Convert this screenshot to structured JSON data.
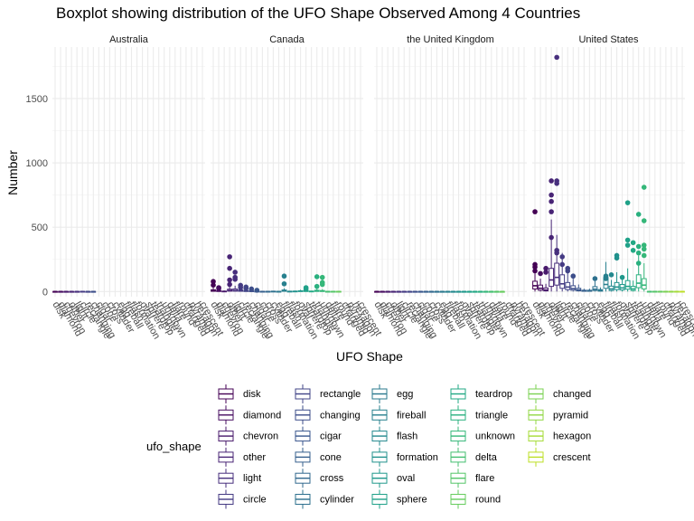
{
  "chart_data": {
    "type": "boxplot",
    "title": "Boxplot showing distribution of the UFO Shape Observed Among 4 Countries",
    "xlabel": "UFO Shape",
    "ylabel": "Number",
    "ylim": [
      -40,
      1900
    ],
    "yticks": [
      0,
      500,
      1000,
      1500
    ],
    "grid": true,
    "legend_title": "ufo_shape",
    "legend_position": "bottom",
    "facets": [
      "Australia",
      "Canada",
      "the United Kingdom",
      "United States"
    ],
    "categories": [
      "disk",
      "diamond",
      "chevron",
      "other",
      "light",
      "circle",
      "rectangle",
      "changing",
      "cigar",
      "cone",
      "cross",
      "cylinder",
      "egg",
      "fireball",
      "flash",
      "formation",
      "oval",
      "sphere",
      "teardrop",
      "triangle",
      "unknown",
      "delta",
      "flare",
      "round",
      "changed",
      "pyramid",
      "hexagon",
      "crescent"
    ],
    "colors": [
      "#440154",
      "#470d60",
      "#48196b",
      "#482475",
      "#472f7d",
      "#443a83",
      "#414487",
      "#3d4e8a",
      "#39568c",
      "#355f8d",
      "#31688e",
      "#2d708e",
      "#2a788e",
      "#27808e",
      "#23888e",
      "#21918c",
      "#1f988b",
      "#1fa188",
      "#22a884",
      "#2ab07f",
      "#35b779",
      "#44bf70",
      "#54c568",
      "#66cc5d",
      "#7ad151",
      "#90d743",
      "#a5db36",
      "#bddf26"
    ],
    "series": [
      {
        "name": "Australia",
        "shapes": [
          "disk",
          "diamond",
          "chevron",
          "other",
          "light",
          "circle",
          "rectangle",
          "changing"
        ],
        "boxes": [
          [
            0,
            0,
            0,
            0,
            1
          ],
          [
            0,
            0,
            0,
            0,
            1
          ],
          [
            0,
            0,
            0,
            0,
            1
          ],
          [
            0,
            0,
            0,
            0,
            1
          ],
          [
            0,
            0,
            0,
            0,
            1
          ],
          [
            0,
            0,
            0,
            1,
            2
          ],
          [
            0,
            0,
            0,
            0,
            1
          ],
          [
            0,
            0,
            0,
            0,
            1
          ]
        ],
        "outliers": [
          [],
          [],
          [],
          [],
          [],
          [],
          [],
          []
        ]
      },
      {
        "name": "Canada",
        "shapes": [
          "disk",
          "diamond",
          "chevron",
          "other",
          "light",
          "circle",
          "rectangle",
          "changing",
          "cigar",
          "cone",
          "cross",
          "cylinder",
          "egg",
          "fireball",
          "flash",
          "formation",
          "oval",
          "sphere",
          "teardrop",
          "triangle",
          "unknown",
          "delta",
          "flare",
          "round"
        ],
        "boxes": [
          [
            0,
            2,
            6,
            14,
            30
          ],
          [
            0,
            1,
            3,
            8,
            18
          ],
          [
            0,
            0,
            1,
            3,
            8
          ],
          [
            0,
            3,
            8,
            18,
            40
          ],
          [
            0,
            3,
            8,
            20,
            45
          ],
          [
            0,
            2,
            5,
            12,
            26
          ],
          [
            0,
            1,
            3,
            7,
            15
          ],
          [
            0,
            1,
            2,
            5,
            10
          ],
          [
            0,
            0,
            1,
            2,
            5
          ],
          [
            0,
            0,
            0,
            1,
            2
          ],
          [
            0,
            0,
            0,
            1,
            2
          ],
          [
            0,
            0,
            1,
            2,
            5
          ],
          [
            0,
            0,
            0,
            1,
            2
          ],
          [
            0,
            2,
            5,
            12,
            25
          ],
          [
            0,
            0,
            1,
            2,
            5
          ],
          [
            0,
            0,
            1,
            3,
            7
          ],
          [
            0,
            1,
            3,
            6,
            14
          ],
          [
            0,
            1,
            3,
            8,
            18
          ],
          [
            0,
            0,
            1,
            3,
            6
          ],
          [
            0,
            1,
            4,
            10,
            22
          ],
          [
            0,
            1,
            3,
            8,
            18
          ],
          [
            0,
            0,
            0,
            1,
            2
          ],
          [
            0,
            0,
            0,
            1,
            2
          ],
          [
            0,
            0,
            0,
            1,
            2
          ]
        ],
        "outliers": [
          [
            50,
            78
          ],
          [
            25,
            30
          ],
          [],
          [
            90,
            270,
            180,
            55
          ],
          [
            110,
            150,
            95
          ],
          [
            30,
            48
          ],
          [
            25,
            35
          ],
          [
            20
          ],
          [
            10
          ],
          [],
          [],
          [],
          [],
          [
            120,
            60
          ],
          [],
          [],
          [],
          [
            20,
            30
          ],
          [],
          [
            40,
            115
          ],
          [
            70,
            110,
            55
          ],
          [],
          [],
          []
        ]
      },
      {
        "name": "the United Kingdom",
        "shapes": [
          "disk",
          "diamond",
          "chevron",
          "other",
          "light",
          "circle",
          "rectangle",
          "changing",
          "cigar",
          "cone",
          "cross",
          "cylinder",
          "egg",
          "fireball",
          "flash",
          "formation",
          "oval",
          "sphere",
          "teardrop",
          "triangle",
          "unknown",
          "delta",
          "flare",
          "round"
        ],
        "boxes": [
          [
            0,
            0,
            0,
            0,
            0
          ],
          [
            0,
            0,
            0,
            0,
            0
          ],
          [
            0,
            0,
            0,
            0,
            0
          ],
          [
            0,
            0,
            0,
            0,
            0
          ],
          [
            0,
            0,
            0,
            0,
            0
          ],
          [
            0,
            0,
            0,
            0,
            0
          ],
          [
            0,
            0,
            0,
            0,
            0
          ],
          [
            0,
            0,
            0,
            0,
            0
          ],
          [
            0,
            0,
            0,
            0,
            0
          ],
          [
            0,
            0,
            0,
            0,
            0
          ],
          [
            0,
            0,
            0,
            0,
            0
          ],
          [
            0,
            0,
            0,
            0,
            0
          ],
          [
            0,
            0,
            0,
            0,
            0
          ],
          [
            0,
            0,
            0,
            0,
            0
          ],
          [
            0,
            0,
            0,
            0,
            0
          ],
          [
            0,
            0,
            0,
            0,
            0
          ],
          [
            0,
            0,
            0,
            0,
            0
          ],
          [
            0,
            0,
            0,
            0,
            0
          ],
          [
            0,
            0,
            0,
            0,
            0
          ],
          [
            0,
            0,
            0,
            0,
            0
          ],
          [
            0,
            0,
            0,
            0,
            0
          ],
          [
            0,
            0,
            0,
            0,
            0
          ],
          [
            0,
            0,
            0,
            0,
            0
          ],
          [
            0,
            0,
            0,
            0,
            0
          ]
        ],
        "outliers": [
          [],
          [],
          [],
          [],
          [],
          [],
          [],
          [],
          [],
          [],
          [],
          [],
          [],
          [],
          [],
          [],
          [],
          [],
          [],
          [],
          [],
          [],
          [],
          []
        ]
      },
      {
        "name": "United States",
        "shapes": [
          "disk",
          "diamond",
          "chevron",
          "other",
          "light",
          "circle",
          "rectangle",
          "changing",
          "cigar",
          "cone",
          "cross",
          "cylinder",
          "egg",
          "fireball",
          "flash",
          "formation",
          "oval",
          "sphere",
          "teardrop",
          "triangle",
          "unknown",
          "delta",
          "flare",
          "round",
          "changed",
          "pyramid",
          "hexagon",
          "crescent"
        ],
        "boxes": [
          [
            0,
            20,
            45,
            80,
            140
          ],
          [
            0,
            10,
            25,
            50,
            100
          ],
          [
            0,
            5,
            12,
            28,
            60
          ],
          [
            0,
            40,
            90,
            180,
            560
          ],
          [
            0,
            50,
            110,
            220,
            440
          ],
          [
            0,
            25,
            60,
            130,
            300
          ],
          [
            0,
            15,
            35,
            70,
            150
          ],
          [
            0,
            10,
            22,
            45,
            100
          ],
          [
            0,
            5,
            12,
            25,
            55
          ],
          [
            0,
            2,
            5,
            10,
            22
          ],
          [
            0,
            2,
            5,
            10,
            22
          ],
          [
            0,
            8,
            18,
            38,
            80
          ],
          [
            0,
            3,
            8,
            15,
            32
          ],
          [
            0,
            25,
            55,
            110,
            230
          ],
          [
            0,
            8,
            20,
            42,
            90
          ],
          [
            0,
            15,
            35,
            70,
            150
          ],
          [
            0,
            12,
            28,
            55,
            120
          ],
          [
            0,
            18,
            40,
            85,
            180
          ],
          [
            0,
            8,
            20,
            40,
            85
          ],
          [
            0,
            30,
            65,
            130,
            280
          ],
          [
            0,
            20,
            50,
            100,
            220
          ],
          [
            0,
            0,
            0,
            1,
            2
          ],
          [
            0,
            0,
            0,
            1,
            2
          ],
          [
            0,
            0,
            0,
            1,
            2
          ],
          [
            0,
            0,
            0,
            1,
            2
          ],
          [
            0,
            0,
            0,
            1,
            2
          ],
          [
            0,
            0,
            0,
            1,
            2
          ],
          [
            0,
            0,
            0,
            1,
            2
          ]
        ],
        "outliers": [
          [
            620,
            210,
            190,
            160
          ],
          [
            140
          ],
          [
            180,
            150
          ],
          [
            860,
            750,
            700,
            620,
            420
          ],
          [
            1820,
            860,
            840,
            320,
            300
          ],
          [
            270,
            210
          ],
          [
            160,
            180
          ],
          [
            120
          ],
          [],
          [],
          [],
          [
            100
          ],
          [],
          [
            120,
            100
          ],
          [
            130
          ],
          [
            280,
            260
          ],
          [
            110
          ],
          [
            690,
            400,
            360
          ],
          [
            380,
            320
          ],
          [
            600,
            350,
            300,
            220
          ],
          [
            360,
            330,
            280,
            810,
            550
          ],
          [],
          [],
          [],
          [],
          [],
          [],
          []
        ]
      }
    ]
  }
}
